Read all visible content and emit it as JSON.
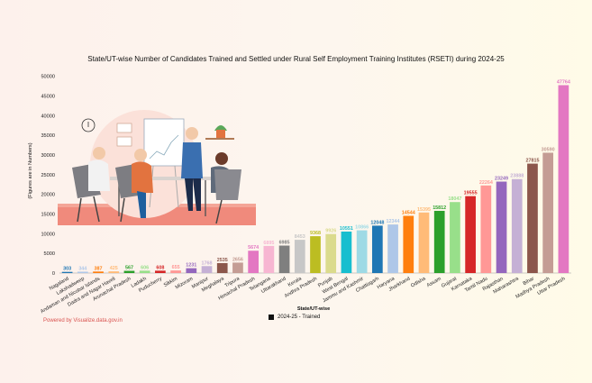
{
  "title": "State/UT-wise Number of Candidates Trained and Settled under Rural Self Employment Training Institutes (RSETI) during 2024-25",
  "credit": "Powered by Visualize.data.gov.in",
  "chart_data": {
    "type": "bar",
    "xlabel": "State/UT-wise",
    "ylabel": "(Figures are in Numbers)",
    "ylim": [
      0,
      52000
    ],
    "yticks": [
      0,
      5000,
      10000,
      15000,
      20000,
      25000,
      30000,
      35000,
      40000,
      45000,
      50000
    ],
    "grid": false,
    "legend": "bottom-center",
    "series": [
      {
        "name": "2024-25 - Trained",
        "legend_color": "#111111"
      }
    ],
    "categories": [
      "Nagaland",
      "Lakshadweep",
      "Andaman and Nicobar Islands",
      "Dadra and Nagar Haveli",
      "Arunachal Pradesh",
      "Ladakh",
      "Puducherry",
      "Sikkim",
      "Mizoram",
      "Manipur",
      "Meghalaya",
      "Tripura",
      "Himachal Pradesh",
      "Telangana",
      "Uttarakhand",
      "Kerala",
      "Andhra Pradesh",
      "Punjab",
      "West Bengal",
      "Jammu and Kashmir",
      "Chattisgarh",
      "Haryana",
      "Jharkhand",
      "Odisha",
      "Assam",
      "Gujarat",
      "Karnataka",
      "Tamil Nadu",
      "Rajasthan",
      "Maharashtra",
      "Bihar",
      "Madhya Pradesh",
      "Uttar Pradesh"
    ],
    "values": [
      303,
      344,
      387,
      425,
      567,
      606,
      608,
      655,
      1231,
      1768,
      2535,
      2656,
      5674,
      6895,
      6985,
      8453,
      9368,
      9926,
      10551,
      10866,
      12048,
      12344,
      14544,
      15395,
      15812,
      18047,
      19555,
      22264,
      23249,
      23888,
      27815,
      30590,
      47764
    ],
    "colors": [
      "#1f77b4",
      "#aec7e8",
      "#ff7f0e",
      "#ffbb78",
      "#2ca02c",
      "#98df8a",
      "#d62728",
      "#ff9896",
      "#9467bd",
      "#c5b0d5",
      "#8c564b",
      "#c49c94",
      "#e377c2",
      "#f7b6d2",
      "#7f7f7f",
      "#c7c7c7",
      "#bcbd22",
      "#dbdb8d",
      "#17becf",
      "#9edae5",
      "#1f77b4",
      "#aec7e8",
      "#ff7f0e",
      "#ffbb78",
      "#2ca02c",
      "#98df8a",
      "#d62728",
      "#ff9896",
      "#9467bd",
      "#c5b0d5",
      "#8c564b",
      "#c49c94",
      "#e377c2"
    ]
  }
}
